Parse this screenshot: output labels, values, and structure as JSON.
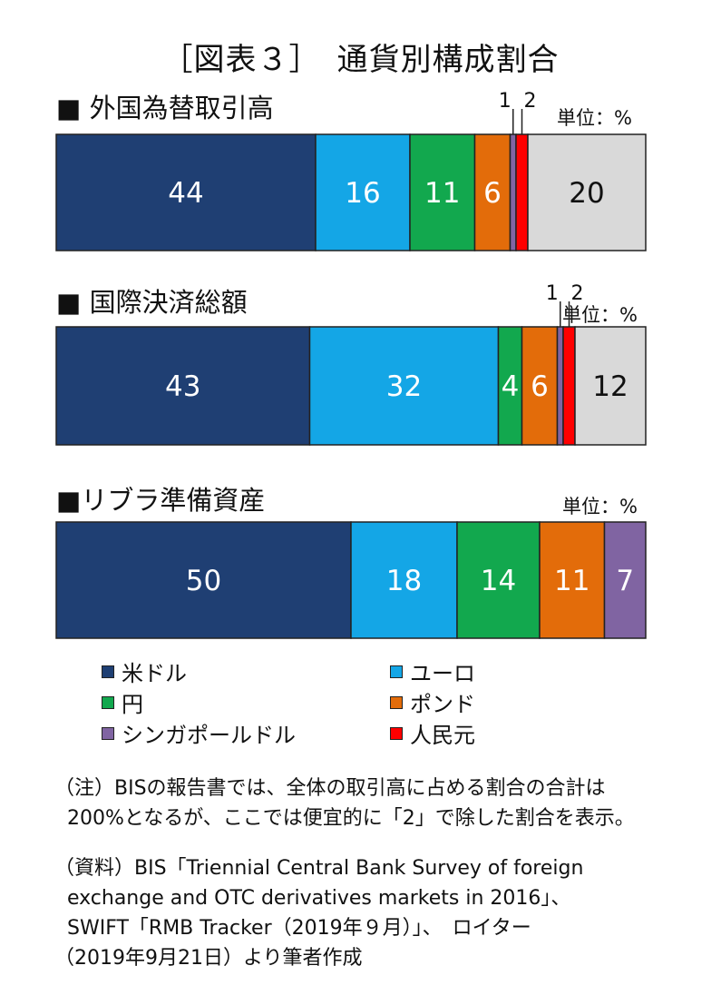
{
  "figure_title": "［図表３］　通貨別構成割合",
  "unit_text": "単位：%",
  "colors": {
    "usd": "#1f3f73",
    "eur": "#14a6e6",
    "jpy": "#12a84e",
    "gbp": "#e36c0a",
    "sgd": "#8064a2",
    "cny": "#ff0000",
    "other": "#d9d9d9"
  },
  "legend": [
    {
      "key": "usd",
      "label": "米ドル"
    },
    {
      "key": "eur",
      "label": "ユーロ"
    },
    {
      "key": "jpy",
      "label": "円"
    },
    {
      "key": "gbp",
      "label": "ポンド"
    },
    {
      "key": "sgd",
      "label": "シンガポールドル"
    },
    {
      "key": "cny",
      "label": "人民元"
    }
  ],
  "chart_data": [
    {
      "type": "bar",
      "orientation": "horizontal-stacked",
      "title": "■ 外国為替取引高",
      "unit": "単位：%",
      "segments": [
        {
          "key": "usd",
          "value": 44,
          "label": "44"
        },
        {
          "key": "eur",
          "value": 16,
          "label": "16"
        },
        {
          "key": "jpy",
          "value": 11,
          "label": "11"
        },
        {
          "key": "gbp",
          "value": 6,
          "label": "6"
        },
        {
          "key": "sgd",
          "value": 1,
          "label": "1"
        },
        {
          "key": "cny",
          "value": 2,
          "label": "2"
        },
        {
          "key": "other",
          "value": 20,
          "label": "20"
        }
      ]
    },
    {
      "type": "bar",
      "orientation": "horizontal-stacked",
      "title": "■ 国際決済総額",
      "unit": "単位：%",
      "segments": [
        {
          "key": "usd",
          "value": 43,
          "label": "43"
        },
        {
          "key": "eur",
          "value": 32,
          "label": "32"
        },
        {
          "key": "jpy",
          "value": 4,
          "label": "4"
        },
        {
          "key": "gbp",
          "value": 6,
          "label": "6"
        },
        {
          "key": "sgd",
          "value": 1,
          "label": "1"
        },
        {
          "key": "cny",
          "value": 2,
          "label": "2"
        },
        {
          "key": "other",
          "value": 12,
          "label": "12"
        }
      ]
    },
    {
      "type": "bar",
      "orientation": "horizontal-stacked",
      "title": "■リブラ準備資産",
      "unit": "単位：%",
      "segments": [
        {
          "key": "usd",
          "value": 50,
          "label": "50"
        },
        {
          "key": "eur",
          "value": 18,
          "label": "18"
        },
        {
          "key": "jpy",
          "value": 14,
          "label": "14"
        },
        {
          "key": "gbp",
          "value": 11,
          "label": "11"
        },
        {
          "key": "sgd",
          "value": 7,
          "label": "7"
        }
      ]
    }
  ],
  "notes": {
    "note_line1": "（注）BISの報告書では、全体の取引高に占める割合の合計は",
    "note_line2": "200%となるが、ここでは便宜的に「2」で除した割合を表示。",
    "source_line1": "（資料）BIS「Triennial Central Bank Survey of foreign",
    "source_line2": "exchange and OTC derivatives markets in 2016」、",
    "source_line3": "SWIFT「RMB Tracker（2019年９月）」、　ロイター",
    "source_line4": "（2019年9月21日）より筆者作成"
  }
}
